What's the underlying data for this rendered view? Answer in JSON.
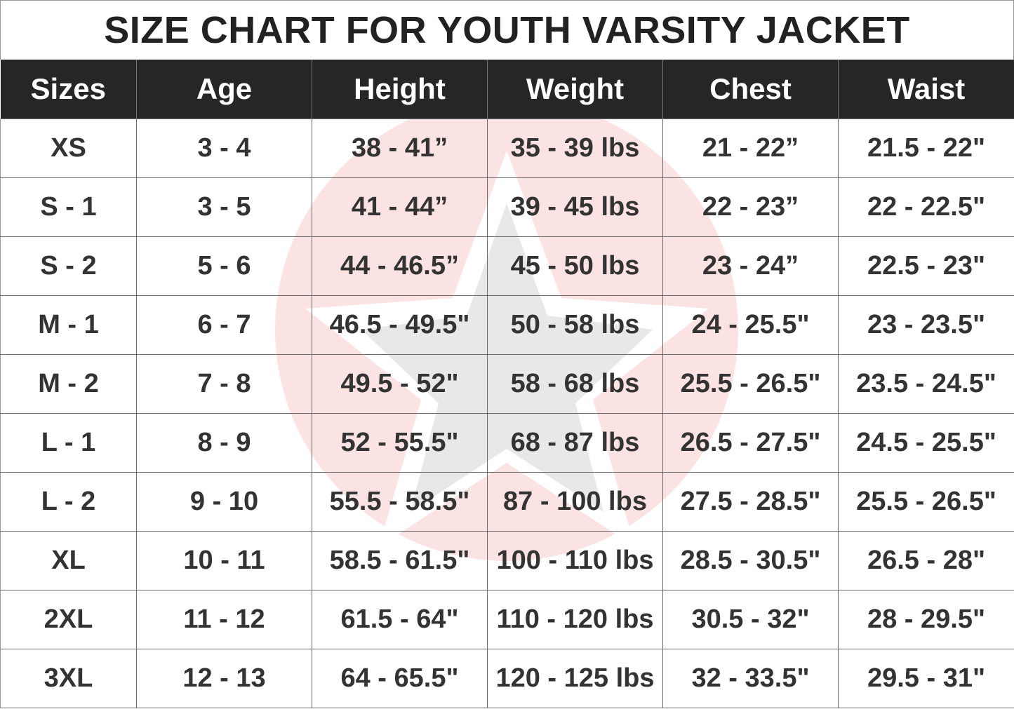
{
  "title": "SIZE CHART FOR YOUTH VARSITY JACKET",
  "colors": {
    "header_bg": "#262626",
    "header_text": "#ffffff",
    "text": "#333333",
    "watermark_circle": "#fbe3e3",
    "watermark_figure": "#e6e6e6"
  },
  "watermark_icon": "star-emblem-icon",
  "columns": [
    "Sizes",
    "Age",
    "Height",
    "Weight",
    "Chest",
    "Waist"
  ],
  "rows": [
    [
      "XS",
      "3 - 4",
      "38 - 41”",
      "35 - 39 lbs",
      "21 - 22”",
      "21.5 - 22\""
    ],
    [
      "S - 1",
      "3 - 5",
      "41 - 44”",
      "39 - 45 lbs",
      "22 - 23”",
      "22 - 22.5\""
    ],
    [
      "S - 2",
      "5 - 6",
      "44 - 46.5”",
      "45 - 50 lbs",
      "23 - 24”",
      "22.5 - 23\""
    ],
    [
      "M - 1",
      "6 - 7",
      "46.5 - 49.5\"",
      "50 - 58 lbs",
      "24 - 25.5\"",
      "23 - 23.5\""
    ],
    [
      "M - 2",
      "7 - 8",
      "49.5 - 52\"",
      "58 - 68 lbs",
      "25.5 - 26.5\"",
      "23.5 - 24.5\""
    ],
    [
      "L - 1",
      "8 - 9",
      "52 - 55.5\"",
      "68 - 87 lbs",
      "26.5 - 27.5\"",
      "24.5 - 25.5\""
    ],
    [
      "L - 2",
      "9 - 10",
      "55.5 - 58.5\"",
      "87 - 100 lbs",
      "27.5 - 28.5\"",
      "25.5 - 26.5\""
    ],
    [
      "XL",
      "10 - 11",
      "58.5 - 61.5\"",
      "100 - 110 lbs",
      "28.5 - 30.5\"",
      "26.5 - 28\""
    ],
    [
      "2XL",
      "11 - 12",
      "61.5 - 64\"",
      "110 - 120 lbs",
      "30.5 - 32\"",
      "28 - 29.5\""
    ],
    [
      "3XL",
      "12 - 13",
      "64 - 65.5\"",
      "120 - 125 lbs",
      "32 - 33.5\"",
      "29.5 - 31\""
    ]
  ]
}
